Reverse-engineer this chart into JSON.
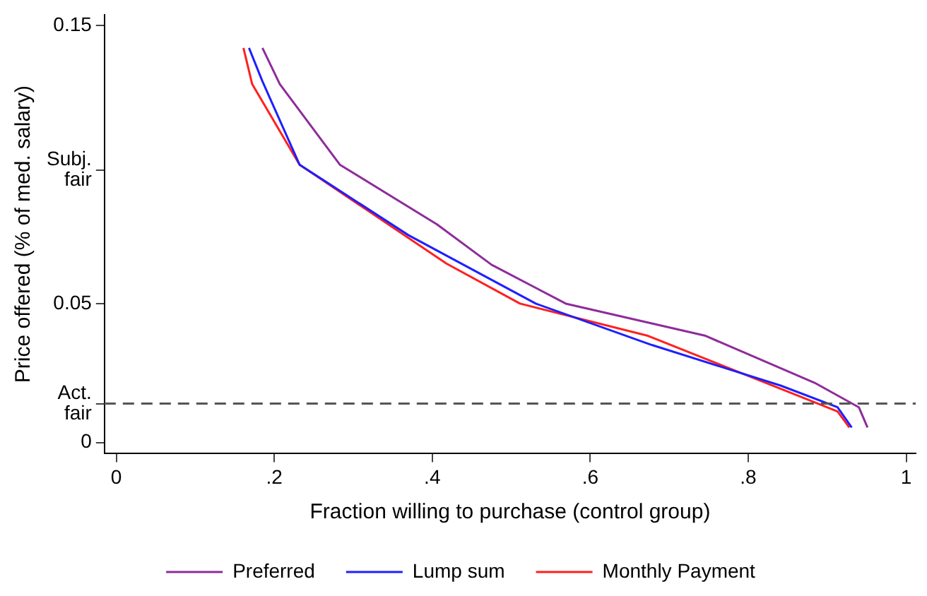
{
  "chart_data": {
    "type": "line",
    "xlabel": "Fraction willing to purchase (control group)",
    "ylabel": "Price offered (% of med. salary)",
    "xlim": [
      -0.015,
      1.012
    ],
    "ylim": [
      -0.004,
      0.154
    ],
    "xticks": [
      0,
      {
        "value": 0.2,
        "label": ".2"
      },
      {
        "value": 0.4,
        "label": ".4"
      },
      {
        "value": 0.6,
        "label": ".6"
      },
      {
        "value": 0.8,
        "label": ".8"
      },
      1
    ],
    "yticks": [
      0,
      {
        "value": 0.014,
        "label": "Act.\nfair"
      },
      0.05,
      {
        "value": 0.098,
        "label": "Subj.\nfair"
      },
      0.15
    ],
    "grid": false,
    "legend": "bottom",
    "marker": "none",
    "line_style": "solid",
    "ref_lines": [
      {
        "axis": "y",
        "value": 0.014,
        "label": null,
        "color": "#555555",
        "line_style": "dashed"
      }
    ],
    "series": [
      {
        "name": "Preferred",
        "color": "#8e2c9a",
        "x": [
          0.185,
          0.207,
          0.283,
          0.406,
          0.475,
          0.569,
          0.745,
          0.884,
          0.94,
          0.951
        ],
        "values": [
          0.142,
          0.129,
          0.1,
          0.0785,
          0.064,
          0.05,
          0.0385,
          0.0215,
          0.0127,
          0.0054
        ]
      },
      {
        "name": "Lump sum",
        "color": "#1f1fff",
        "x": [
          0.168,
          0.185,
          0.232,
          0.37,
          0.531,
          0.678,
          0.841,
          0.913,
          0.931
        ],
        "values": [
          0.142,
          0.13,
          0.1,
          0.0746,
          0.05,
          0.0351,
          0.0205,
          0.0127,
          0.0054
        ]
      },
      {
        "name": "Monthly Payment",
        "color": "#ff2020",
        "x": [
          0.161,
          0.172,
          0.232,
          0.418,
          0.511,
          0.672,
          0.913,
          0.928
        ],
        "values": [
          0.142,
          0.129,
          0.1,
          0.0644,
          0.05,
          0.0385,
          0.0112,
          0.0054
        ]
      }
    ]
  }
}
